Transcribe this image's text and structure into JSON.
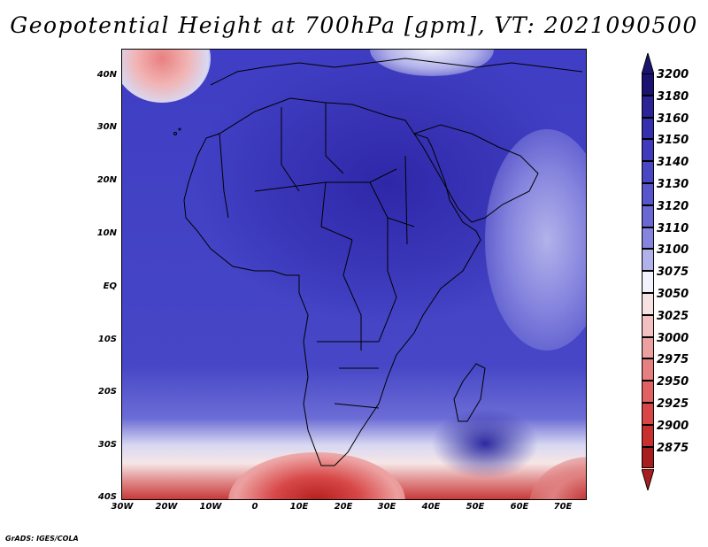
{
  "title": "Geopotential Height at 700hPa [gpm], VT: 2021090500",
  "credit": "GrADS: IGES/COLA",
  "lat_labels": [
    "40N",
    "30N",
    "20N",
    "10N",
    "EQ",
    "10S",
    "20S",
    "30S",
    "40S"
  ],
  "lon_labels": [
    "30W",
    "20W",
    "10W",
    "0",
    "10E",
    "20E",
    "30E",
    "40E",
    "50E",
    "60E",
    "70E"
  ],
  "colorbar": {
    "levels": [
      "3200",
      "3180",
      "3160",
      "3150",
      "3140",
      "3130",
      "3120",
      "3110",
      "3100",
      "3075",
      "3050",
      "3025",
      "3000",
      "2975",
      "2950",
      "2925",
      "2900",
      "2875"
    ],
    "colors": [
      "#1a1470",
      "#2a2496",
      "#3530ad",
      "#3f3bbc",
      "#4a47c4",
      "#5856cc",
      "#6a69d4",
      "#8584de",
      "#b2b2ea",
      "#f2f2fa",
      "#f6e2e2",
      "#f2c0c0",
      "#eca0a0",
      "#e68080",
      "#e06262",
      "#d84646",
      "#c83030",
      "#a81e1e"
    ]
  }
}
